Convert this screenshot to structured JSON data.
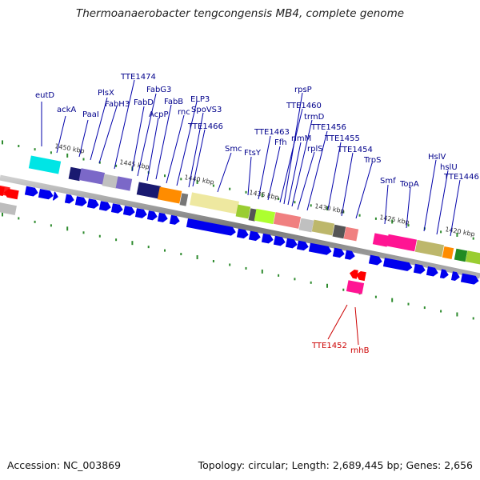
{
  "title": "Thermoanaerobacter tengcongensis MB4, complete genome",
  "accession": "Accession: NC_003869",
  "summary": "Topology: circular; Length: 2,689,445 bp; Genes: 2,656",
  "ticks": [
    {
      "label": "1450 kbp"
    },
    {
      "label": "1445 kbp"
    },
    {
      "label": "1440 kbp"
    },
    {
      "label": "1435 kbp"
    },
    {
      "label": "1430 kbp"
    },
    {
      "label": "1425 kbp"
    },
    {
      "label": "1420 kbp"
    }
  ],
  "forward_genes": [
    "eutD",
    "ackA",
    "PaaI",
    "PlsX",
    "FabH3",
    "TTE1474",
    "FabD",
    "FabG3",
    "AcpP",
    "FabB",
    "rnc",
    "ELP3",
    "SpoVS3",
    "TTE1466",
    "Smc",
    "FtsY",
    "TTE1463",
    "Ffh",
    "rpsP",
    "rimM",
    "TTE1460",
    "trmD",
    "rplS",
    "TTE1456",
    "TTE1455",
    "TTE1454",
    "TrpS",
    "Smf",
    "TopA",
    "HslV",
    "hslU",
    "TTE1446"
  ],
  "reverse_genes": [
    "TTE1452",
    "rnhB"
  ],
  "colors": {
    "forward_arrow": "#0000ee",
    "reverse_arrow": "#ff0000",
    "forward_label": "#00008b",
    "reverse_label": "#cc0000",
    "tick": "#2e8b2e",
    "backbone": "#888888"
  }
}
